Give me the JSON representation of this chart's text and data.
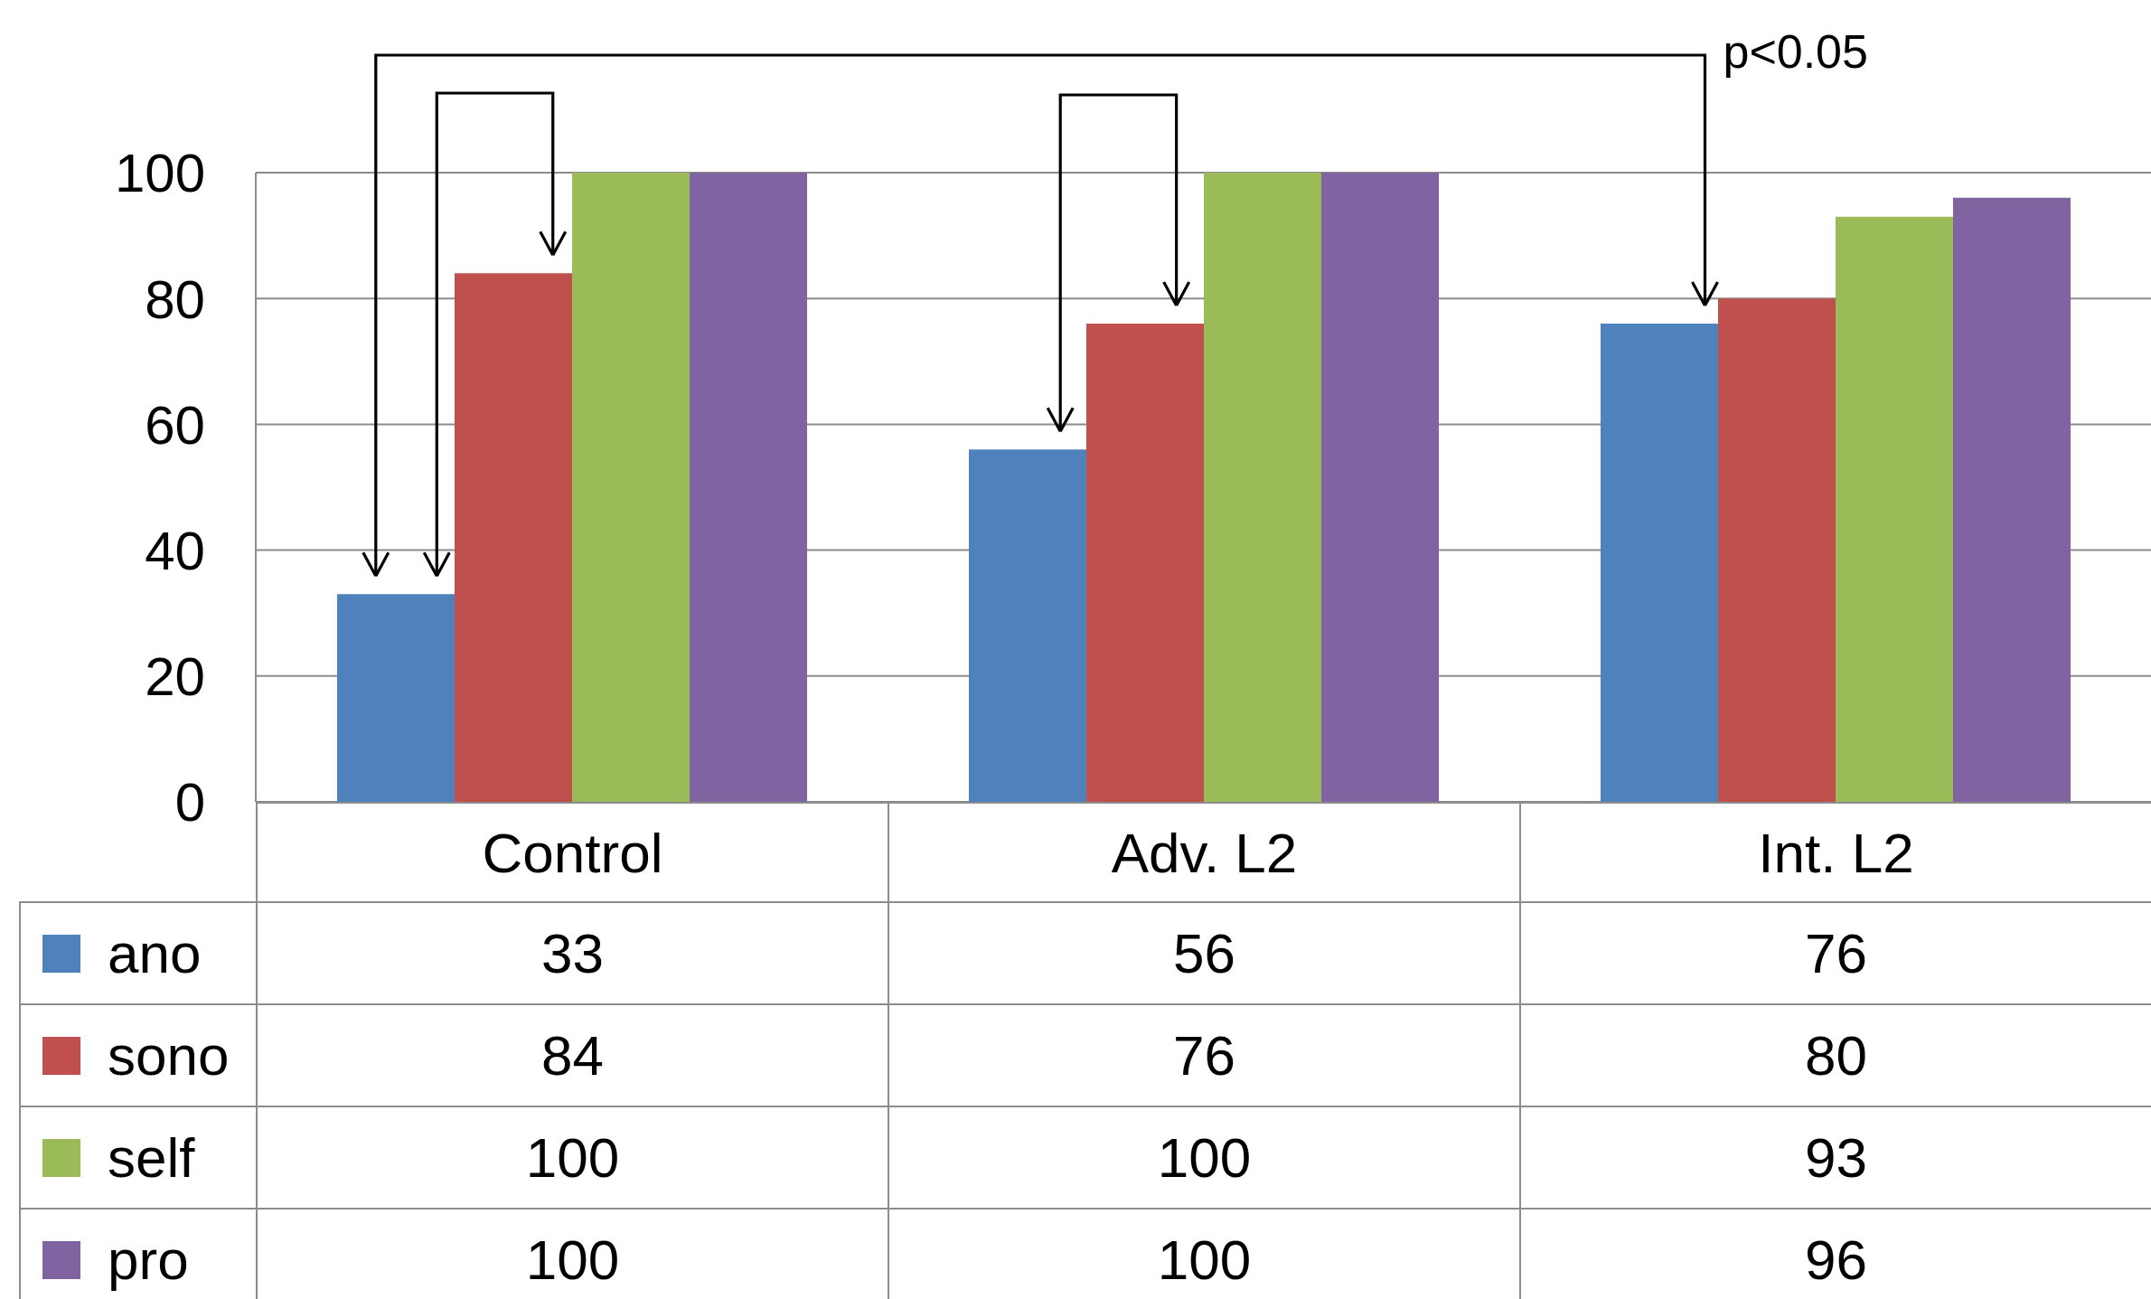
{
  "chart_data": {
    "type": "bar",
    "categories": [
      "Control",
      "Adv. L2",
      "Int. L2"
    ],
    "series": [
      {
        "name": "ano",
        "color": "#4f81bd",
        "values": [
          33,
          56,
          76
        ]
      },
      {
        "name": "sono",
        "color": "#c0504d",
        "values": [
          84,
          76,
          80
        ]
      },
      {
        "name": "self",
        "color": "#9bbb59",
        "values": [
          100,
          100,
          93
        ]
      },
      {
        "name": "pro",
        "color": "#8064a2",
        "values": [
          100,
          100,
          96
        ]
      }
    ],
    "ylim": [
      0,
      100
    ],
    "yticks": [
      0,
      20,
      40,
      60,
      80,
      100
    ],
    "grid": "y",
    "legend": "bottom",
    "data_labels": true,
    "annotations": [
      "p<0.05"
    ]
  }
}
